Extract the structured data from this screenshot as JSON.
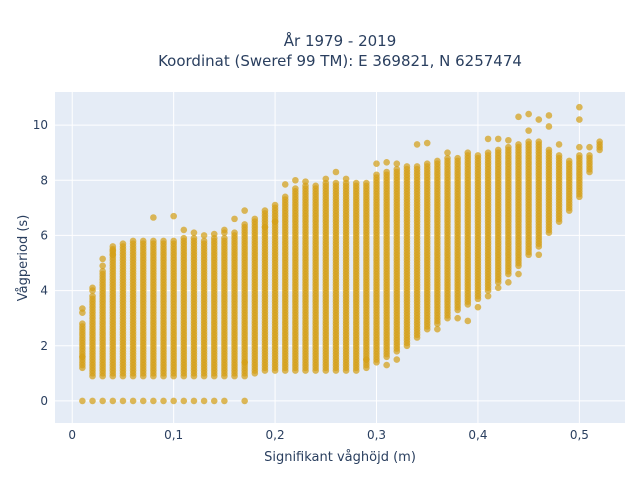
{
  "chart_data": {
    "type": "scatter",
    "title_line1": "År 1979 - 2019",
    "title_line2": "Koordinat (Sweref 99 TM): E 369821, N 6257474",
    "xlabel": "Signifikant våghöjd (m)",
    "ylabel": "Vågperiod (s)",
    "xlim": [
      -0.017,
      0.545
    ],
    "ylim": [
      -0.8,
      11.2
    ],
    "xticks": [
      0,
      0.1,
      0.2,
      0.3,
      0.4,
      0.5
    ],
    "xtick_labels": [
      "0",
      "0,1",
      "0,2",
      "0,3",
      "0,4",
      "0,5"
    ],
    "yticks": [
      0,
      2,
      4,
      6,
      8,
      10
    ],
    "ytick_labels": [
      "0",
      "2",
      "4",
      "6",
      "8",
      "10"
    ],
    "grid": true,
    "marker_color": "#d4a017",
    "background_color": "#e5ecf6",
    "columns": [
      {
        "x": 0.01,
        "ymin": 1.2,
        "ymax": 2.8,
        "extras": [
          3.2,
          3.35,
          1.6
        ]
      },
      {
        "x": 0.02,
        "ymin": 0.9,
        "ymax": 3.8,
        "extras": [
          4.0,
          4.1
        ]
      },
      {
        "x": 0.03,
        "ymin": 0.9,
        "ymax": 4.7,
        "extras": [
          4.9,
          5.15
        ]
      },
      {
        "x": 0.04,
        "ymin": 0.9,
        "ymax": 5.6,
        "extras": [
          5.3,
          5.45
        ]
      },
      {
        "x": 0.05,
        "ymin": 0.9,
        "ymax": 5.75,
        "extras": []
      },
      {
        "x": 0.06,
        "ymin": 0.9,
        "ymax": 5.8,
        "extras": []
      },
      {
        "x": 0.07,
        "ymin": 0.9,
        "ymax": 5.85,
        "extras": []
      },
      {
        "x": 0.08,
        "ymin": 0.9,
        "ymax": 5.85,
        "extras": [
          6.65
        ]
      },
      {
        "x": 0.09,
        "ymin": 0.9,
        "ymax": 5.85,
        "extras": []
      },
      {
        "x": 0.1,
        "ymin": 0.9,
        "ymax": 5.85,
        "extras": [
          6.7
        ]
      },
      {
        "x": 0.11,
        "ymin": 0.9,
        "ymax": 5.9,
        "extras": [
          6.2
        ]
      },
      {
        "x": 0.12,
        "ymin": 0.9,
        "ymax": 5.9,
        "extras": [
          6.1
        ]
      },
      {
        "x": 0.13,
        "ymin": 0.9,
        "ymax": 5.8,
        "extras": [
          6.0
        ]
      },
      {
        "x": 0.14,
        "ymin": 0.9,
        "ymax": 5.9,
        "extras": [
          6.05
        ]
      },
      {
        "x": 0.15,
        "ymin": 0.9,
        "ymax": 5.9,
        "extras": [
          6.1,
          6.2
        ]
      },
      {
        "x": 0.16,
        "ymin": 0.9,
        "ymax": 6.1,
        "extras": [
          6.6
        ]
      },
      {
        "x": 0.17,
        "ymin": 0.9,
        "ymax": 6.4,
        "extras": [
          6.9,
          1.4
        ]
      },
      {
        "x": 0.18,
        "ymin": 1.0,
        "ymax": 6.6,
        "extras": []
      },
      {
        "x": 0.19,
        "ymin": 1.1,
        "ymax": 6.9,
        "extras": [
          6.3
        ]
      },
      {
        "x": 0.2,
        "ymin": 1.1,
        "ymax": 7.1,
        "extras": [
          6.5
        ]
      },
      {
        "x": 0.21,
        "ymin": 1.1,
        "ymax": 7.4,
        "extras": [
          7.85
        ]
      },
      {
        "x": 0.22,
        "ymin": 1.1,
        "ymax": 7.7,
        "extras": [
          8.0
        ]
      },
      {
        "x": 0.23,
        "ymin": 1.1,
        "ymax": 7.8,
        "extras": [
          7.95
        ]
      },
      {
        "x": 0.24,
        "ymin": 1.1,
        "ymax": 7.8,
        "extras": []
      },
      {
        "x": 0.25,
        "ymin": 1.1,
        "ymax": 7.9,
        "extras": [
          8.05
        ]
      },
      {
        "x": 0.26,
        "ymin": 1.1,
        "ymax": 7.9,
        "extras": [
          8.3
        ]
      },
      {
        "x": 0.27,
        "ymin": 1.1,
        "ymax": 7.9,
        "extras": [
          8.05
        ]
      },
      {
        "x": 0.28,
        "ymin": 1.1,
        "ymax": 7.9,
        "extras": []
      },
      {
        "x": 0.29,
        "ymin": 1.2,
        "ymax": 7.9,
        "extras": [
          1.5
        ]
      },
      {
        "x": 0.3,
        "ymin": 1.4,
        "ymax": 8.2,
        "extras": [
          8.6
        ]
      },
      {
        "x": 0.31,
        "ymin": 1.6,
        "ymax": 8.3,
        "extras": [
          1.3,
          8.65
        ]
      },
      {
        "x": 0.32,
        "ymin": 1.8,
        "ymax": 8.4,
        "extras": [
          1.5,
          8.6
        ]
      },
      {
        "x": 0.33,
        "ymin": 2.1,
        "ymax": 8.5,
        "extras": [
          2.0
        ]
      },
      {
        "x": 0.34,
        "ymin": 2.3,
        "ymax": 8.5,
        "extras": [
          9.3
        ]
      },
      {
        "x": 0.35,
        "ymin": 2.6,
        "ymax": 8.6,
        "extras": [
          9.35
        ]
      },
      {
        "x": 0.36,
        "ymin": 2.8,
        "ymax": 8.7,
        "extras": [
          2.6
        ]
      },
      {
        "x": 0.37,
        "ymin": 3.0,
        "ymax": 8.8,
        "extras": [
          9.0
        ]
      },
      {
        "x": 0.38,
        "ymin": 3.3,
        "ymax": 8.8,
        "extras": [
          3.0
        ]
      },
      {
        "x": 0.39,
        "ymin": 3.5,
        "ymax": 8.9,
        "extras": [
          2.9,
          9.0
        ]
      },
      {
        "x": 0.4,
        "ymin": 3.7,
        "ymax": 8.9,
        "extras": [
          3.4
        ]
      },
      {
        "x": 0.41,
        "ymin": 4.0,
        "ymax": 9.0,
        "extras": [
          9.5,
          3.8
        ]
      },
      {
        "x": 0.42,
        "ymin": 4.3,
        "ymax": 9.1,
        "extras": [
          9.5,
          4.1
        ]
      },
      {
        "x": 0.43,
        "ymin": 4.6,
        "ymax": 9.2,
        "extras": [
          9.45,
          4.3
        ]
      },
      {
        "x": 0.44,
        "ymin": 4.9,
        "ymax": 9.3,
        "extras": [
          10.3,
          4.6
        ]
      },
      {
        "x": 0.45,
        "ymin": 5.3,
        "ymax": 9.4,
        "extras": [
          10.4,
          9.8
        ]
      },
      {
        "x": 0.46,
        "ymin": 5.6,
        "ymax": 9.4,
        "extras": [
          10.2,
          5.3
        ]
      },
      {
        "x": 0.47,
        "ymin": 6.1,
        "ymax": 9.1,
        "extras": [
          10.35,
          9.95
        ]
      },
      {
        "x": 0.48,
        "ymin": 6.5,
        "ymax": 8.9,
        "extras": [
          9.3
        ]
      },
      {
        "x": 0.49,
        "ymin": 6.9,
        "ymax": 8.7,
        "extras": []
      },
      {
        "x": 0.5,
        "ymin": 7.4,
        "ymax": 8.9,
        "extras": [
          10.65,
          10.2,
          9.2
        ]
      },
      {
        "x": 0.51,
        "ymin": 8.3,
        "ymax": 8.9,
        "extras": [
          9.2
        ]
      },
      {
        "x": 0.52,
        "ymin": 9.1,
        "ymax": 9.4,
        "extras": []
      }
    ],
    "zero_row": {
      "y": 0,
      "x": [
        0.01,
        0.02,
        0.03,
        0.04,
        0.05,
        0.06,
        0.07,
        0.08,
        0.09,
        0.1,
        0.11,
        0.12,
        0.13,
        0.14,
        0.15,
        0.17
      ]
    }
  }
}
